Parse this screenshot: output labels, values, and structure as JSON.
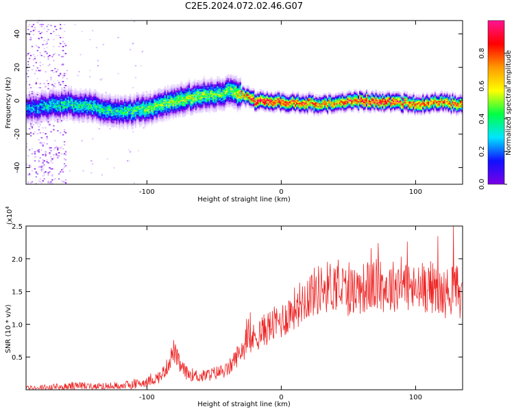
{
  "title": "C2E5.2024.072.02.46.G07",
  "colors": {
    "snr_line": "#ee2222",
    "colormap": [
      "#ffffff",
      "#d8b8ff",
      "#7a00e6",
      "#1010ff",
      "#00e5ff",
      "#00ff44",
      "#ffff00",
      "#ff9900",
      "#ff0000",
      "#ff1493"
    ]
  },
  "chart_data": [
    {
      "type": "heatmap",
      "xlabel": "Height of straight line (km)",
      "ylabel": "Frequency (Hz)",
      "xlim": [
        -190,
        135
      ],
      "ylim": [
        -50,
        48
      ],
      "xticks": [
        {
          "v": -100,
          "label": "-100"
        },
        {
          "v": 0,
          "label": "0"
        },
        {
          "v": 100,
          "label": "100"
        }
      ],
      "yticks": [
        {
          "v": -40,
          "label": "-40"
        },
        {
          "v": -20,
          "label": "-20"
        },
        {
          "v": 0,
          "label": "0"
        },
        {
          "v": 20,
          "label": "20"
        },
        {
          "v": 40,
          "label": "40"
        }
      ],
      "ridge": {
        "x": [
          -190,
          -160,
          -140,
          -120,
          -100,
          -80,
          -60,
          -45,
          -37,
          -30,
          -20,
          0,
          20,
          40,
          60,
          80,
          100,
          120,
          135
        ],
        "freq_hz": [
          -5,
          -2,
          -4,
          -7,
          -5,
          0,
          3,
          4,
          6,
          3,
          0,
          -1,
          -2,
          -2,
          0,
          -1,
          -2,
          -1,
          -3
        ],
        "peak_amplitude": [
          0.4,
          0.5,
          0.5,
          0.5,
          0.55,
          0.6,
          0.6,
          0.55,
          0.6,
          0.7,
          0.9,
          0.85,
          0.8,
          0.75,
          0.9,
          0.85,
          0.8,
          0.8,
          0.8
        ]
      },
      "colorbar": {
        "label": "Normalized spectral amplitude",
        "range": [
          0,
          1
        ],
        "ticks": [
          {
            "v": 0,
            "label": "0.0"
          },
          {
            "v": 0.2,
            "label": "0.2"
          },
          {
            "v": 0.4,
            "label": "0.4"
          },
          {
            "v": 0.6,
            "label": "0.6"
          },
          {
            "v": 0.8,
            "label": "0.8"
          }
        ]
      }
    },
    {
      "type": "line",
      "xlabel": "Height of straight line (km)",
      "ylabel": "SNR (10 * v/v)",
      "y_multiplier_label": "(x10",
      "y_multiplier_exp": "4",
      "y_multiplier_close": ")",
      "xlim": [
        -190,
        135
      ],
      "ylim": [
        0,
        2.5
      ],
      "xticks": [
        {
          "v": -100,
          "label": "-100"
        },
        {
          "v": 0,
          "label": "0"
        },
        {
          "v": 100,
          "label": "100"
        }
      ],
      "yticks": [
        {
          "v": 0.5,
          "label": "0.5"
        },
        {
          "v": 1.0,
          "label": "1.0"
        },
        {
          "v": 1.5,
          "label": "1.5"
        },
        {
          "v": 2.0,
          "label": "2.0"
        },
        {
          "v": 2.5,
          "label": "2.5"
        }
      ],
      "series": [
        {
          "x": [
            -190,
            -170,
            -150,
            -130,
            -110,
            -100,
            -90,
            -85,
            -80,
            -75,
            -70,
            -60,
            -50,
            -40,
            -30,
            -25,
            -20,
            -10,
            0,
            10,
            20,
            30,
            40,
            50,
            60,
            70,
            80,
            90,
            100,
            110,
            120,
            130,
            135
          ],
          "values": [
            0.02,
            0.03,
            0.06,
            0.05,
            0.08,
            0.12,
            0.2,
            0.35,
            0.6,
            0.35,
            0.25,
            0.2,
            0.25,
            0.3,
            0.6,
            0.7,
            0.8,
            0.95,
            1.05,
            1.25,
            1.45,
            1.55,
            1.6,
            1.5,
            1.55,
            1.6,
            1.55,
            1.65,
            1.5,
            1.6,
            1.45,
            1.55,
            1.4
          ]
        }
      ]
    }
  ]
}
